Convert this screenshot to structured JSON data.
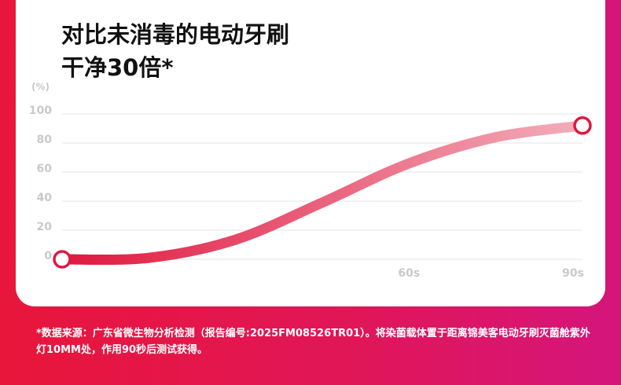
{
  "chart_data": {
    "type": "line",
    "title": [
      "对比未消毒的电动牙刷",
      "干净30倍*"
    ],
    "y_unit": "(%)",
    "x": [
      0,
      15,
      30,
      45,
      60,
      75,
      90
    ],
    "values": [
      0,
      1,
      13.5,
      39,
      66,
      84,
      92
    ],
    "colors": [
      "#e0173f",
      "#f3aebb"
    ],
    "xlim": [
      0,
      90
    ],
    "xticks": [
      {
        "value": 60,
        "label": "60s"
      },
      {
        "value": 90,
        "label": "90s"
      }
    ],
    "ylim": [
      0,
      100
    ],
    "yticks": [
      0,
      20,
      40,
      60,
      80,
      100
    ],
    "grid": true,
    "footnote": "*数据来源：广东省微生物分析检测（报告编号:2025FM08526TR01）。将染菌载体置于距离锦美客电动牙刷灭菌舱紫外灯10MM处，作用90秒后测试获得。"
  }
}
